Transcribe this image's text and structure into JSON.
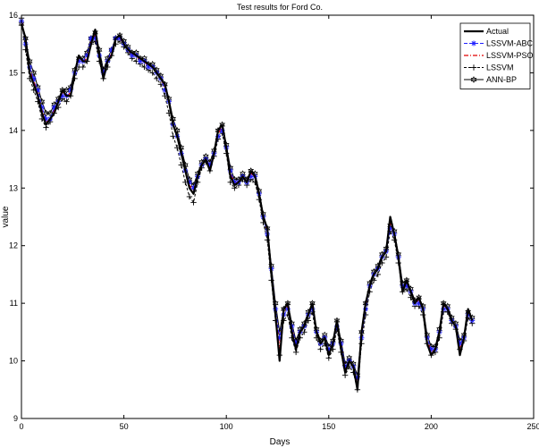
{
  "chart_data": {
    "type": "line",
    "title": "Test results for Ford Co.",
    "xlabel": "Days",
    "ylabel": "value",
    "xlim": [
      0,
      250
    ],
    "ylim": [
      9,
      16
    ],
    "xticks": [
      0,
      50,
      100,
      150,
      200,
      250
    ],
    "yticks": [
      9,
      10,
      11,
      12,
      13,
      14,
      15,
      16
    ],
    "grid": false,
    "legend_position": "top-right",
    "x": [
      0,
      2,
      4,
      6,
      8,
      10,
      12,
      14,
      16,
      18,
      20,
      22,
      24,
      26,
      28,
      30,
      32,
      34,
      36,
      38,
      40,
      42,
      44,
      46,
      48,
      50,
      52,
      54,
      56,
      58,
      60,
      62,
      64,
      66,
      68,
      70,
      72,
      74,
      76,
      78,
      80,
      82,
      84,
      86,
      88,
      90,
      92,
      94,
      96,
      98,
      100,
      102,
      104,
      106,
      108,
      110,
      112,
      114,
      116,
      118,
      120,
      122,
      124,
      126,
      128,
      130,
      132,
      134,
      136,
      138,
      140,
      142,
      144,
      146,
      148,
      150,
      152,
      154,
      156,
      158,
      160,
      162,
      164,
      166,
      168,
      170,
      172,
      174,
      176,
      178,
      180,
      182,
      184,
      186,
      188,
      190,
      192,
      194,
      196,
      198,
      200,
      202,
      204,
      206,
      208,
      210,
      212,
      214,
      216,
      218,
      220
    ],
    "series": [
      {
        "name": "Actual",
        "color": "#000000",
        "style": "solid-thick",
        "values": [
          15.85,
          15.6,
          15.0,
          14.8,
          14.6,
          14.3,
          14.1,
          14.2,
          14.3,
          14.5,
          14.7,
          14.6,
          14.6,
          15.0,
          15.3,
          15.2,
          15.2,
          15.5,
          15.75,
          15.3,
          14.9,
          15.2,
          15.3,
          15.6,
          15.65,
          15.5,
          15.4,
          15.35,
          15.3,
          15.25,
          15.2,
          15.15,
          15.1,
          15.0,
          14.9,
          14.8,
          14.5,
          14.1,
          13.9,
          13.6,
          13.3,
          13.0,
          12.9,
          13.2,
          13.4,
          13.5,
          13.3,
          13.6,
          14.0,
          14.1,
          13.7,
          13.2,
          13.05,
          13.1,
          13.2,
          13.1,
          13.3,
          13.2,
          12.9,
          12.5,
          12.3,
          11.5,
          10.8,
          10.0,
          10.9,
          11.0,
          10.5,
          10.2,
          10.5,
          10.6,
          10.8,
          11.0,
          10.5,
          10.3,
          10.4,
          10.1,
          10.3,
          10.7,
          10.2,
          9.8,
          10.0,
          9.9,
          9.5,
          10.5,
          11.0,
          11.3,
          11.5,
          11.6,
          11.8,
          11.9,
          12.5,
          12.2,
          11.8,
          11.2,
          11.4,
          11.2,
          11.0,
          11.1,
          10.9,
          10.3,
          10.1,
          10.2,
          10.5,
          11.0,
          10.9,
          10.7,
          10.6,
          10.1,
          10.4,
          10.9,
          10.7
        ]
      },
      {
        "name": "LSSVM-ABC",
        "color": "#1f1fff",
        "style": "dashed-star",
        "values": [
          15.9,
          15.5,
          15.1,
          14.9,
          14.7,
          14.4,
          14.2,
          14.2,
          14.4,
          14.5,
          14.6,
          14.6,
          14.7,
          15.0,
          15.2,
          15.2,
          15.3,
          15.6,
          15.6,
          15.3,
          15.0,
          15.2,
          15.4,
          15.6,
          15.6,
          15.5,
          15.4,
          15.3,
          15.3,
          15.2,
          15.2,
          15.1,
          15.1,
          15.0,
          14.9,
          14.7,
          14.5,
          14.1,
          13.9,
          13.6,
          13.3,
          13.1,
          13.0,
          13.2,
          13.4,
          13.5,
          13.4,
          13.6,
          13.9,
          14.0,
          13.7,
          13.3,
          13.1,
          13.1,
          13.2,
          13.1,
          13.2,
          13.2,
          12.9,
          12.5,
          12.2,
          11.6,
          10.9,
          10.4,
          10.8,
          10.9,
          10.6,
          10.3,
          10.5,
          10.6,
          10.8,
          10.9,
          10.5,
          10.3,
          10.4,
          10.2,
          10.3,
          10.6,
          10.3,
          9.9,
          10.0,
          9.9,
          9.7,
          10.4,
          10.9,
          11.3,
          11.5,
          11.6,
          11.8,
          11.9,
          12.3,
          12.2,
          11.8,
          11.3,
          11.3,
          11.2,
          11.0,
          11.0,
          10.9,
          10.4,
          10.2,
          10.2,
          10.5,
          10.9,
          10.9,
          10.7,
          10.6,
          10.3,
          10.4,
          10.8,
          10.7
        ]
      },
      {
        "name": "LSSVM-PSO",
        "color": "#e00000",
        "style": "dashdot",
        "values": [
          15.9,
          15.55,
          15.05,
          14.85,
          14.65,
          14.35,
          14.15,
          14.2,
          14.35,
          14.5,
          14.65,
          14.6,
          14.65,
          15.0,
          15.25,
          15.2,
          15.25,
          15.55,
          15.65,
          15.3,
          14.95,
          15.2,
          15.35,
          15.6,
          15.6,
          15.5,
          15.4,
          15.3,
          15.3,
          15.2,
          15.2,
          15.1,
          15.1,
          15.0,
          14.9,
          14.75,
          14.5,
          14.1,
          13.9,
          13.6,
          13.3,
          13.05,
          12.95,
          13.2,
          13.4,
          13.5,
          13.35,
          13.6,
          13.95,
          14.05,
          13.7,
          13.25,
          13.1,
          13.1,
          13.2,
          13.1,
          13.25,
          13.2,
          12.9,
          12.5,
          12.25,
          11.55,
          10.85,
          10.2,
          10.85,
          10.95,
          10.55,
          10.25,
          10.5,
          10.6,
          10.8,
          10.95,
          10.5,
          10.3,
          10.4,
          10.15,
          10.3,
          10.65,
          10.25,
          9.85,
          10.0,
          9.9,
          9.6,
          10.45,
          10.95,
          11.3,
          11.5,
          11.6,
          11.8,
          11.9,
          12.4,
          12.2,
          11.8,
          11.25,
          11.35,
          11.2,
          11.0,
          11.05,
          10.9,
          10.35,
          10.15,
          10.2,
          10.5,
          10.95,
          10.9,
          10.7,
          10.6,
          10.2,
          10.4,
          10.85,
          10.7
        ]
      },
      {
        "name": "LSSVM",
        "color": "#000000",
        "style": "dashed-plus",
        "values": [
          15.95,
          15.4,
          14.9,
          14.7,
          14.5,
          14.2,
          14.05,
          14.15,
          14.3,
          14.4,
          14.55,
          14.5,
          14.6,
          14.9,
          15.1,
          15.1,
          15.2,
          15.5,
          15.55,
          15.2,
          14.9,
          15.1,
          15.3,
          15.5,
          15.55,
          15.45,
          15.35,
          15.25,
          15.2,
          15.15,
          15.1,
          15.05,
          15.0,
          14.9,
          14.8,
          14.6,
          14.3,
          13.9,
          13.7,
          13.4,
          13.1,
          12.85,
          12.75,
          13.1,
          13.35,
          13.45,
          13.3,
          13.55,
          13.85,
          13.95,
          13.6,
          13.1,
          13.0,
          13.05,
          13.15,
          13.05,
          13.15,
          13.1,
          12.8,
          12.4,
          12.1,
          11.4,
          10.7,
          10.1,
          10.7,
          10.8,
          10.4,
          10.15,
          10.4,
          10.5,
          10.7,
          10.85,
          10.4,
          10.2,
          10.3,
          10.05,
          10.2,
          10.55,
          10.15,
          9.75,
          9.9,
          9.8,
          9.5,
          10.3,
          10.8,
          11.2,
          11.4,
          11.5,
          11.7,
          11.8,
          12.25,
          12.1,
          11.7,
          11.2,
          11.25,
          11.1,
          10.95,
          10.95,
          10.8,
          10.3,
          10.1,
          10.15,
          10.4,
          10.85,
          10.85,
          10.65,
          10.55,
          10.2,
          10.35,
          10.75,
          10.65
        ]
      },
      {
        "name": "ANN-BP",
        "color": "#000000",
        "style": "solid-hexagram",
        "values": [
          15.85,
          15.6,
          15.2,
          15.0,
          14.75,
          14.5,
          14.3,
          14.3,
          14.45,
          14.55,
          14.7,
          14.7,
          14.75,
          15.05,
          15.25,
          15.25,
          15.35,
          15.6,
          15.7,
          15.4,
          15.05,
          15.25,
          15.4,
          15.6,
          15.65,
          15.55,
          15.45,
          15.35,
          15.35,
          15.25,
          15.25,
          15.15,
          15.15,
          15.05,
          14.95,
          14.8,
          14.55,
          14.2,
          14.0,
          13.7,
          13.4,
          13.15,
          13.05,
          13.25,
          13.45,
          13.55,
          13.45,
          13.65,
          14.0,
          14.1,
          13.75,
          13.35,
          13.15,
          13.15,
          13.25,
          13.15,
          13.3,
          13.25,
          12.95,
          12.55,
          12.3,
          11.65,
          11.0,
          10.5,
          10.9,
          11.0,
          10.65,
          10.35,
          10.55,
          10.65,
          10.85,
          11.0,
          10.55,
          10.35,
          10.45,
          10.25,
          10.35,
          10.7,
          10.35,
          9.95,
          10.05,
          9.95,
          9.75,
          10.5,
          11.0,
          11.35,
          11.55,
          11.65,
          11.85,
          11.95,
          12.35,
          12.25,
          11.85,
          11.35,
          11.4,
          11.25,
          11.05,
          11.1,
          10.95,
          10.45,
          10.25,
          10.25,
          10.55,
          11.0,
          10.95,
          10.75,
          10.65,
          10.35,
          10.45,
          10.85,
          10.75
        ]
      }
    ]
  }
}
